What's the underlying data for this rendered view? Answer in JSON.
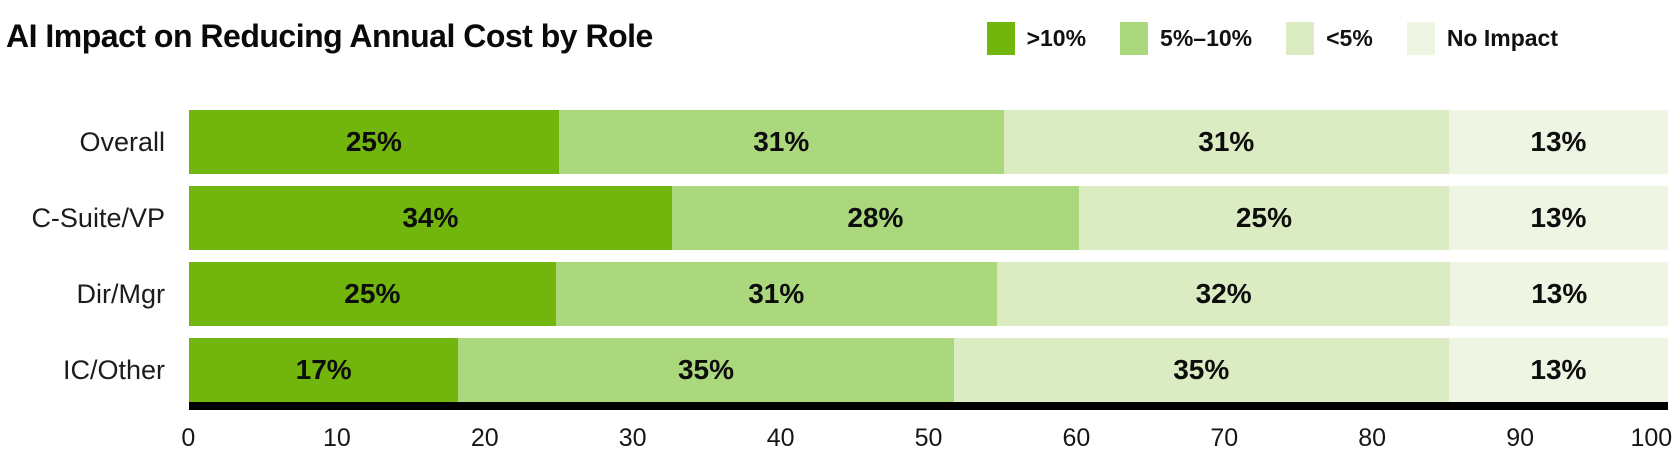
{
  "title": "AI Impact on Reducing Annual Cost by Role",
  "colors": {
    "axis": "#000000",
    "title_text": "#0a0a0a",
    "value_label_text": "#0d0d0d",
    "series_dark_green": "#71b50d",
    "series_medium_green": "#abd87d",
    "series_light_green": "#dcecc2",
    "series_pale_green": "#eef5e2"
  },
  "chart_data": {
    "type": "bar",
    "stacked": true,
    "orientation": "horizontal",
    "title": "AI Impact on Reducing Annual Cost by Role",
    "categories": [
      "Overall",
      "C-Suite/VP",
      "Dir/Mgr",
      "IC/Other"
    ],
    "series": [
      {
        "name": ">10%",
        "color": "#71b50d",
        "values": [
          25,
          34,
          25,
          17
        ]
      },
      {
        "name": "5%–10%",
        "color": "#abd87d",
        "values": [
          31,
          28,
          31,
          35
        ]
      },
      {
        "name": "<5%",
        "color": "#dcecc2",
        "values": [
          31,
          25,
          32,
          35
        ]
      },
      {
        "name": "No Impact",
        "color": "#eef5e2",
        "values": [
          13,
          13,
          13,
          13
        ]
      }
    ],
    "value_suffix": "%",
    "xlabel": "",
    "ylabel": "",
    "xlim": [
      0,
      100
    ],
    "x_ticks": [
      0,
      10,
      20,
      30,
      40,
      50,
      60,
      70,
      80,
      90,
      100
    ],
    "legend_position": "top-right",
    "grid": false
  }
}
